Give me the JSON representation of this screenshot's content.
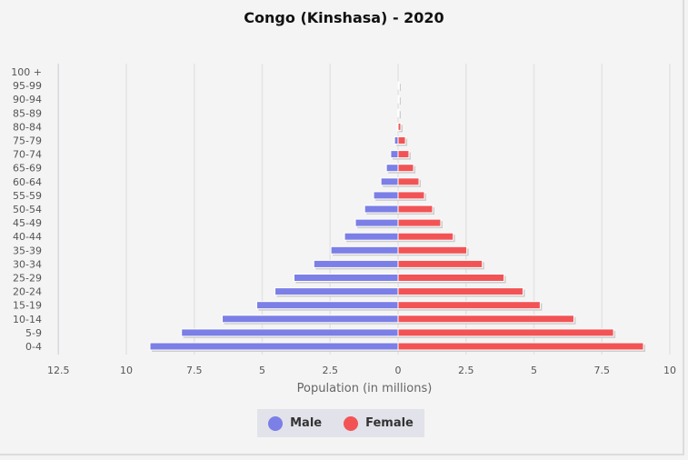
{
  "chart_data": {
    "type": "bar",
    "orientation": "horizontal-pyramid",
    "title": "Congo (Kinshasa) - 2020",
    "xlabel": "Population (in millions)",
    "ylabel": "",
    "xlim": [
      -12.5,
      10
    ],
    "x_ticks": [
      "12.5",
      "10",
      "7.5",
      "5",
      "2.5",
      "0",
      "2.5",
      "5",
      "7.5",
      "10"
    ],
    "x_tick_values": [
      -12.5,
      -10,
      -7.5,
      -5,
      -2.5,
      0,
      2.5,
      5,
      7.5,
      10
    ],
    "grid": true,
    "legend_position": "bottom",
    "categories": [
      "100 +",
      "95-99",
      "90-94",
      "85-89",
      "80-84",
      "75-79",
      "70-74",
      "65-69",
      "60-64",
      "55-59",
      "50-54",
      "45-49",
      "40-44",
      "35-39",
      "30-34",
      "25-29",
      "20-24",
      "15-19",
      "10-14",
      "5-9",
      "0-4"
    ],
    "series": [
      {
        "name": "Male",
        "color": "#7b7fe6",
        "values": [
          0,
          0,
          0.003,
          0.01,
          0.03,
          0.13,
          0.27,
          0.43,
          0.63,
          0.9,
          1.23,
          1.57,
          1.97,
          2.47,
          3.1,
          3.83,
          4.53,
          5.2,
          6.47,
          7.97,
          9.13
        ]
      },
      {
        "name": "Female",
        "color": "#f25456",
        "values": [
          0,
          0.001,
          0.01,
          0.03,
          0.1,
          0.27,
          0.4,
          0.57,
          0.77,
          0.97,
          1.27,
          1.57,
          2.03,
          2.53,
          3.1,
          3.9,
          4.6,
          5.23,
          6.47,
          7.93,
          9.03
        ]
      }
    ]
  }
}
